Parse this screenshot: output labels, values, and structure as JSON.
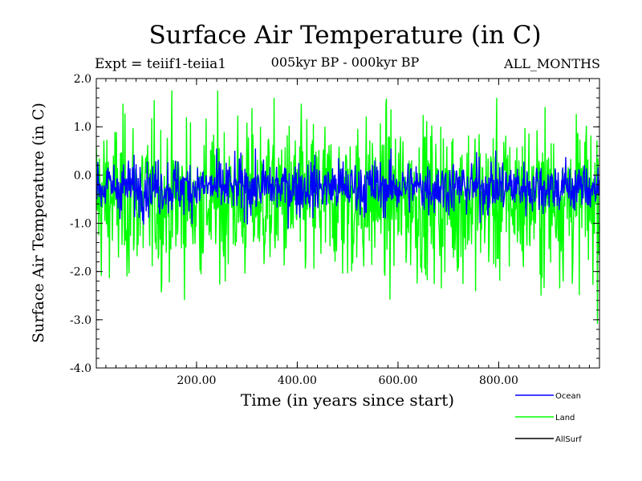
{
  "chart_data": {
    "type": "line",
    "title": "Surface Air Temperature (in C)",
    "subtitle": "005kyr BP - 000kyr BP",
    "annotations": {
      "left": "Expt = teiif1-teiia1",
      "right": "ALL_MONTHS"
    },
    "xlabel": "Time (in years since start)",
    "ylabel": "Surface Air Temperature (in C)",
    "xlim": [
      1,
      1000
    ],
    "ylim": [
      -4.0,
      2.0
    ],
    "xticks": [
      "200.00",
      "400.00",
      "600.00",
      "800.00"
    ],
    "xtick_values": [
      200,
      400,
      600,
      800
    ],
    "yticks": [
      "-4.0",
      "-3.0",
      "-2.0",
      "-1.0",
      "0.0",
      "1.0",
      "2.0"
    ],
    "ytick_values": [
      -4,
      -3,
      -2,
      -1,
      0,
      1,
      2
    ],
    "legend_position": "bottom-right",
    "series": [
      {
        "name": "Land",
        "color": "#00ff00",
        "approx_mean": -0.5,
        "approx_range": [
          -3.3,
          2.0
        ],
        "n_points": 1000
      },
      {
        "name": "Ocean",
        "color": "#0000ff",
        "approx_mean": -0.25,
        "approx_range": [
          -1.3,
          0.55
        ],
        "n_points": 1000
      },
      {
        "name": "AllSurf",
        "color": "#000000"
      }
    ],
    "legend_order": [
      "Ocean",
      "Land",
      "AllSurf"
    ]
  }
}
